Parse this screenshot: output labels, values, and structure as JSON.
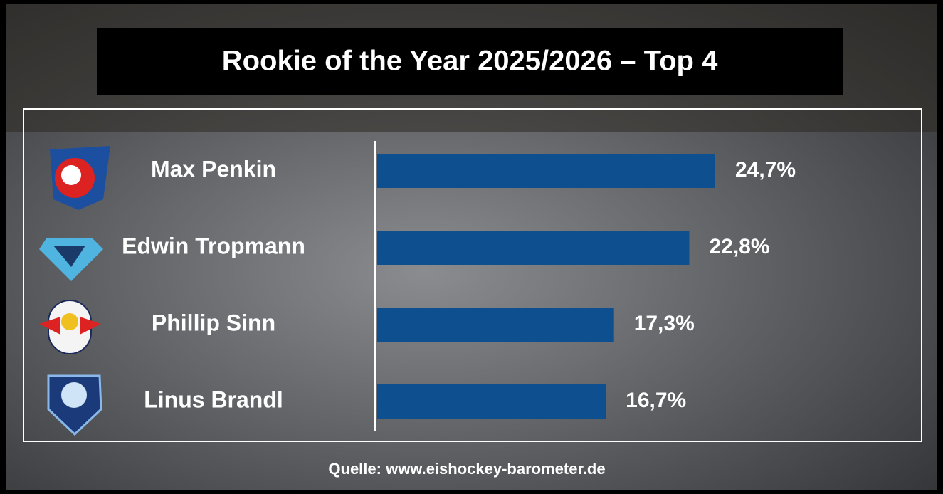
{
  "chart_data": {
    "type": "bar",
    "orientation": "horizontal",
    "title": "Rookie of the Year 2025/2026 – Top 4",
    "categories": [
      "Max Penkin",
      "Edwin Tropmann",
      "Phillip Sinn",
      "Linus Brandl"
    ],
    "values": [
      24.7,
      22.8,
      17.3,
      16.7
    ],
    "value_labels": [
      "24,7%",
      "22,8%",
      "17,3%",
      "16,7%"
    ],
    "color": "#0d4f8f",
    "source": "Quelle: www.eishockey-barometer.de"
  }
}
